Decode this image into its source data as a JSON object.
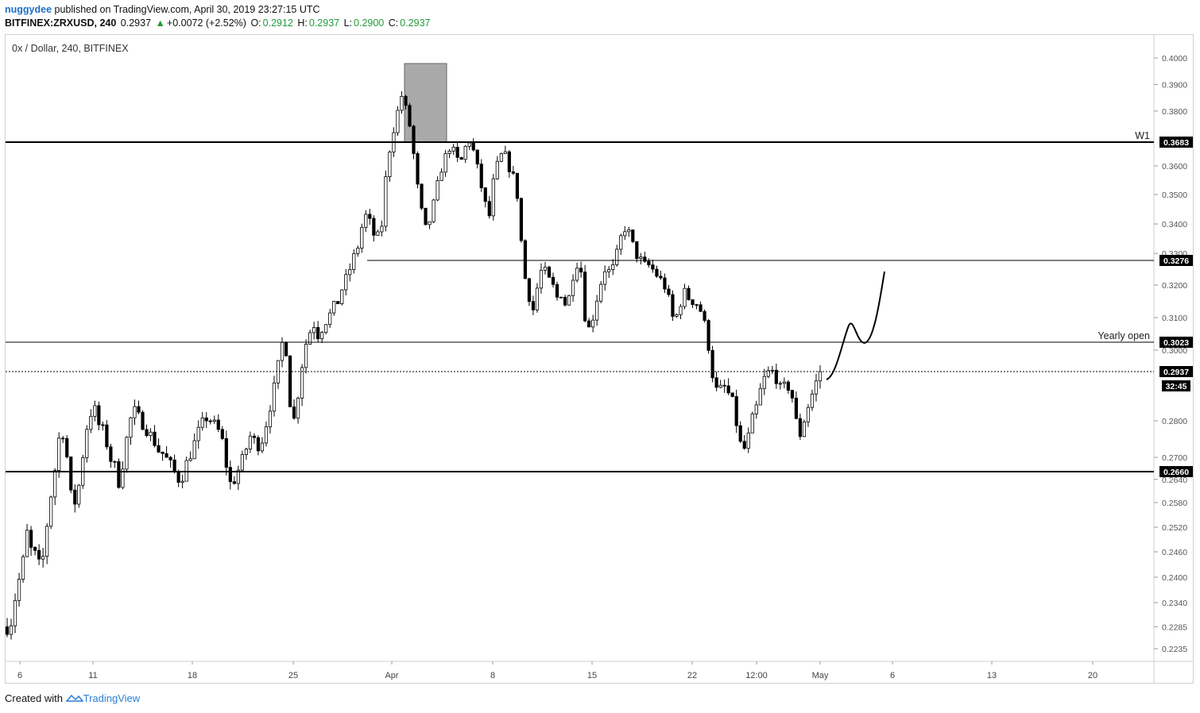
{
  "header": {
    "author": "nuggydee",
    "published_text": "published on TradingView.com, April 30, 2019 23:27:15 UTC",
    "symbol": "BITFINEX:ZRXUSD, 240",
    "last": "0.2937",
    "change": "+0.0072 (+2.52%)",
    "up_arrow": "▲",
    "o_label": "O:",
    "o": "0.2912",
    "h_label": "H:",
    "h": "0.2937",
    "l_label": "L:",
    "l": "0.2900",
    "c_label": "C:",
    "c": "0.2937"
  },
  "footer": {
    "created_with": "Created with",
    "brand": "TradingView"
  },
  "colors": {
    "up": "#1f9d3a",
    "candle": "#000000",
    "highlight_box": "#8c8c8c",
    "author": "#1e6fc9",
    "brand": "#2a7dd6"
  },
  "chart_data": {
    "type": "candlestick",
    "title": "0x / Dollar, 240, BITFINEX",
    "y_axis": {
      "position": "right",
      "ticks": [
        0.4,
        0.39,
        0.38,
        0.36,
        0.35,
        0.34,
        0.33,
        0.32,
        0.31,
        0.3,
        0.28,
        0.27,
        0.264,
        0.258,
        0.252,
        0.246,
        0.24,
        0.234,
        0.2285,
        0.2235
      ]
    },
    "x_axis": {
      "ticks": [
        "6",
        "11",
        "18",
        "25",
        "Apr",
        "8",
        "15",
        "22",
        "12:00",
        "May",
        "6",
        "13",
        "20"
      ]
    },
    "horizontal_levels": [
      {
        "value": 0.3683,
        "label": "0.3683",
        "note": "W1",
        "style": "thick"
      },
      {
        "value": 0.3276,
        "label": "0.3276",
        "note": "",
        "style": "thin"
      },
      {
        "value": 0.3023,
        "label": "0.3023",
        "note": "Yearly open",
        "style": "thin"
      },
      {
        "value": 0.2937,
        "label": "0.2937",
        "note": "",
        "style": "dotted"
      },
      {
        "value": 0.266,
        "label": "0.2660",
        "note": "",
        "style": "thick"
      }
    ],
    "countdown": "32:45",
    "price_path": [
      [
        0.2285,
        0.23
      ],
      [
        0.238,
        0.241
      ],
      [
        0.251,
        0.246
      ],
      [
        0.245,
        0.241
      ],
      [
        0.251,
        0.26
      ],
      [
        0.268,
        0.279
      ],
      [
        0.274,
        0.26
      ],
      [
        0.258,
        0.264
      ],
      [
        0.276,
        0.282
      ],
      [
        0.283,
        0.278
      ],
      [
        0.277,
        0.27
      ],
      [
        0.268,
        0.263
      ],
      [
        0.27,
        0.279
      ],
      [
        0.283,
        0.281
      ],
      [
        0.279,
        0.277
      ],
      [
        0.275,
        0.272
      ],
      [
        0.271,
        0.269
      ],
      [
        0.267,
        0.264
      ],
      [
        0.265,
        0.269
      ],
      [
        0.272,
        0.276
      ],
      [
        0.279,
        0.281
      ],
      [
        0.28,
        0.278
      ],
      [
        0.276,
        0.268
      ],
      [
        0.262,
        0.265
      ],
      [
        0.268,
        0.272
      ],
      [
        0.276,
        0.274
      ],
      [
        0.273,
        0.278
      ],
      [
        0.284,
        0.29
      ],
      [
        0.298,
        0.306
      ],
      [
        0.286,
        0.28
      ],
      [
        0.29,
        0.3
      ],
      [
        0.305,
        0.308
      ],
      [
        0.304,
        0.308
      ],
      [
        0.31,
        0.313
      ],
      [
        0.315,
        0.32
      ],
      [
        0.323,
        0.328
      ],
      [
        0.332,
        0.34
      ],
      [
        0.344,
        0.337
      ],
      [
        0.335,
        0.34
      ],
      [
        0.36,
        0.37
      ],
      [
        0.378,
        0.386
      ],
      [
        0.38,
        0.372
      ],
      [
        0.356,
        0.345
      ],
      [
        0.338,
        0.342
      ],
      [
        0.35,
        0.358
      ],
      [
        0.363,
        0.367
      ],
      [
        0.364,
        0.36
      ],
      [
        0.366,
        0.369
      ],
      [
        0.364,
        0.356
      ],
      [
        0.348,
        0.342
      ],
      [
        0.356,
        0.362
      ],
      [
        0.365,
        0.36
      ],
      [
        0.356,
        0.348
      ],
      [
        0.325,
        0.318
      ],
      [
        0.312,
        0.32
      ],
      [
        0.326,
        0.322
      ],
      [
        0.32,
        0.316
      ],
      [
        0.318,
        0.312
      ],
      [
        0.322,
        0.327
      ],
      [
        0.324,
        0.305
      ],
      [
        0.308,
        0.315
      ],
      [
        0.321,
        0.326
      ],
      [
        0.323,
        0.328
      ],
      [
        0.335,
        0.339
      ],
      [
        0.336,
        0.33
      ],
      [
        0.328,
        0.326
      ],
      [
        0.326,
        0.324
      ],
      [
        0.322,
        0.32
      ],
      [
        0.315,
        0.308
      ],
      [
        0.313,
        0.318
      ],
      [
        0.316,
        0.315
      ],
      [
        0.314,
        0.31
      ],
      [
        0.302,
        0.292
      ],
      [
        0.287,
        0.29
      ],
      [
        0.288,
        0.285
      ],
      [
        0.278,
        0.271
      ],
      [
        0.274,
        0.28
      ],
      [
        0.284,
        0.29
      ],
      [
        0.293,
        0.294
      ],
      [
        0.292,
        0.288
      ],
      [
        0.29,
        0.289
      ],
      [
        0.28,
        0.276
      ],
      [
        0.282,
        0.286
      ],
      [
        0.29,
        0.2937
      ]
    ],
    "projection": "curved forecast line rising from 0.2937 toward about 0.3250"
  }
}
